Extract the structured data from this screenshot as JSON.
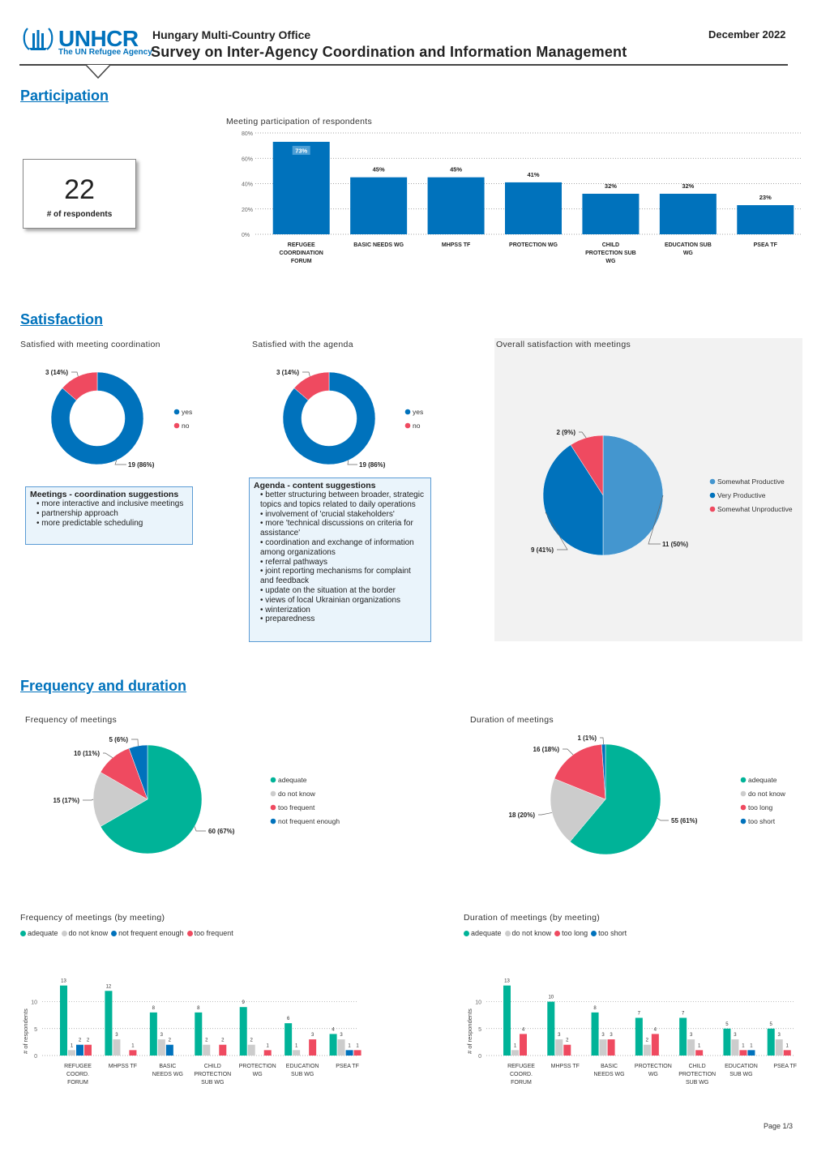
{
  "header": {
    "org_name": "UNHCR",
    "org_tagline": "The UN Refugee Agency",
    "office": "Hungary Multi-Country Office",
    "title": "Survey on Inter-Agency Coordination and Information Management",
    "date": "December 2022"
  },
  "colors": {
    "blue": "#0072BC",
    "light_blue": "#4496CF",
    "teal": "#00B398",
    "gray": "#CCCCCC",
    "red": "#EF4A60"
  },
  "sections": {
    "participation": "Participation",
    "satisfaction": "Satisfaction",
    "frequency": "Frequency and duration"
  },
  "kpi": {
    "value": "22",
    "label": "# of respondents"
  },
  "notes": {
    "meetings": {
      "title": "Meetings - coordination suggestions",
      "items": [
        "more interactive and inclusive meetings",
        "partnership approach",
        "more predictable scheduling"
      ]
    },
    "agenda": {
      "title": "Agenda - content suggestions",
      "items": [
        "better structuring between broader, strategic topics and topics related to daily operations",
        "involvement of 'crucial stakeholders'",
        " more 'technical discussions on criteria for assistance'",
        "coordination and exchange of information among organizations",
        "referral pathways",
        "joint reporting mechanisms for complaint and feedback",
        "update on the situation at the border",
        "views of local Ukrainian organizations",
        "winterization",
        "preparedness"
      ]
    }
  },
  "footer": {
    "page": "Page 1/3"
  },
  "chart_data": [
    {
      "id": "participation",
      "type": "bar",
      "title": "Meeting participation of respondents",
      "categories": [
        "REFUGEE COORDINATION FORUM",
        "BASIC NEEDS WG",
        "MHPSS TF",
        "PROTECTION WG",
        "CHILD PROTECTION SUB WG",
        "EDUCATION SUB WG",
        "PSEA TF"
      ],
      "values": [
        73,
        45,
        45,
        41,
        32,
        32,
        23
      ],
      "value_suffix": "%",
      "yticks": [
        "0%",
        "20%",
        "40%",
        "60%",
        "80%"
      ],
      "ylim": [
        0,
        80
      ],
      "grid": true
    },
    {
      "id": "sat_coordination",
      "type": "pie",
      "donut": true,
      "title": "Satisfied with meeting coordination",
      "labels": [
        "yes",
        "no"
      ],
      "values": [
        19,
        3
      ],
      "data_labels": [
        "19 (86%)",
        "3 (14%)"
      ],
      "colors": [
        "#0072BC",
        "#EF4A60"
      ],
      "legend_position": "right"
    },
    {
      "id": "sat_agenda",
      "type": "pie",
      "donut": true,
      "title": "Satisfied with the agenda",
      "labels": [
        "yes",
        "no"
      ],
      "values": [
        19,
        3
      ],
      "data_labels": [
        "19 (86%)",
        "3 (14%)"
      ],
      "colors": [
        "#0072BC",
        "#EF4A60"
      ],
      "legend_position": "right"
    },
    {
      "id": "overall_satisfaction",
      "type": "pie",
      "title": "Overall satisfaction with meetings",
      "labels": [
        "Somewhat Productive",
        "Very Productive",
        "Somewhat Unproductive"
      ],
      "values": [
        11,
        9,
        2
      ],
      "data_labels": [
        "11 (50%)",
        "9 (41%)",
        "2 (9%)"
      ],
      "colors": [
        "#4496CF",
        "#0072BC",
        "#EF4A60"
      ],
      "legend_position": "right"
    },
    {
      "id": "frequency",
      "type": "pie",
      "title": "Frequency of meetings",
      "labels": [
        "adequate",
        "do not know",
        "too frequent",
        "not frequent enough"
      ],
      "values": [
        60,
        15,
        10,
        5
      ],
      "data_labels": [
        "60 (67%)",
        "15 (17%)",
        "10 (11%)",
        "5 (6%)"
      ],
      "colors": [
        "#00B398",
        "#CCCCCC",
        "#EF4A60",
        "#0072BC"
      ],
      "legend_position": "right"
    },
    {
      "id": "duration",
      "type": "pie",
      "title": "Duration of meetings",
      "labels": [
        "adequate",
        "do not know",
        "too long",
        "too short"
      ],
      "values": [
        55,
        18,
        16,
        1
      ],
      "data_labels": [
        "55 (61%)",
        "18 (20%)",
        "16 (18%)",
        "1 (1%)"
      ],
      "colors": [
        "#00B398",
        "#CCCCCC",
        "#EF4A60",
        "#0072BC"
      ],
      "legend_position": "right"
    },
    {
      "id": "frequency_by_meeting",
      "type": "bar",
      "title": "Frequency of meetings (by meeting)",
      "ylabel": "# of respondents",
      "ylim": [
        0,
        14
      ],
      "yticks": [
        "0",
        "5",
        "10"
      ],
      "categories": [
        "REFUGEE COORD. FORUM",
        "MHPSS TF",
        "BASIC NEEDS WG",
        "CHILD PROTECTION SUB WG",
        "PROTECTION WG",
        "EDUCATION SUB WG",
        "PSEA TF"
      ],
      "legend_position": "top-left",
      "series": [
        {
          "name": "adequate",
          "color": "#00B398",
          "values": [
            13,
            12,
            8,
            8,
            9,
            6,
            4
          ]
        },
        {
          "name": "do not know",
          "color": "#CCCCCC",
          "values": [
            1,
            3,
            3,
            2,
            2,
            1,
            3
          ]
        },
        {
          "name": "not frequent enough",
          "color": "#0072BC",
          "values": [
            2,
            null,
            2,
            null,
            null,
            null,
            1
          ]
        },
        {
          "name": "too frequent",
          "color": "#EF4A60",
          "values": [
            2,
            1,
            null,
            2,
            1,
            3,
            1
          ]
        }
      ]
    },
    {
      "id": "duration_by_meeting",
      "type": "bar",
      "title": "Duration of meetings (by meeting)",
      "ylabel": "# of respondents",
      "ylim": [
        0,
        14
      ],
      "yticks": [
        "0",
        "5",
        "10"
      ],
      "categories": [
        "REFUGEE COORD. FORUM",
        "MHPSS TF",
        "BASIC NEEDS WG",
        "PROTECTION WG",
        "CHILD PROTECTION SUB WG",
        "EDUCATION SUB WG",
        "PSEA TF"
      ],
      "legend_position": "top-left",
      "series": [
        {
          "name": "adequate",
          "color": "#00B398",
          "values": [
            13,
            10,
            8,
            7,
            7,
            5,
            5
          ]
        },
        {
          "name": "do not know",
          "color": "#CCCCCC",
          "values": [
            1,
            3,
            3,
            2,
            3,
            3,
            3
          ]
        },
        {
          "name": "too long",
          "color": "#EF4A60",
          "values": [
            4,
            2,
            3,
            4,
            1,
            1,
            1
          ]
        },
        {
          "name": "too short",
          "color": "#0072BC",
          "values": [
            null,
            null,
            null,
            null,
            null,
            1,
            null
          ]
        }
      ]
    }
  ]
}
